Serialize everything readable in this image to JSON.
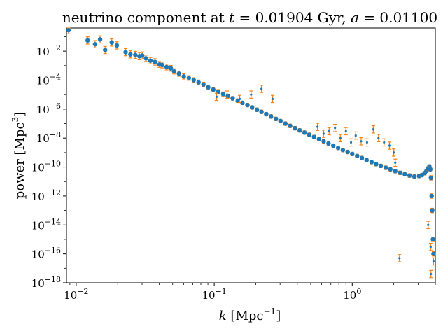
{
  "chart_data": {
    "type": "scatter",
    "title": {
      "prefix": "neutrino component at ",
      "t_symbol": "t",
      "eq1": " = 0.01904 Gyr, ",
      "a_symbol": "a",
      "eq2": " = 0.01100"
    },
    "xlabel": {
      "symbol": "k",
      "unit_open": " [Mpc",
      "unit_exp": "−1",
      "unit_close": "]"
    },
    "ylabel": {
      "text": "power [Mpc",
      "unit_exp": "3",
      "unit_close": "]"
    },
    "x_scale": "log",
    "y_scale": "log",
    "xlim": [
      0.0085,
      4.0
    ],
    "ylim": [
      1e-18,
      0.4
    ],
    "x_ticks": [
      {
        "base": "10",
        "exp": "−2",
        "value": 0.01
      },
      {
        "base": "10",
        "exp": "−1",
        "value": 0.1
      },
      {
        "base": "10",
        "exp": "0",
        "value": 1
      }
    ],
    "y_ticks": [
      {
        "base": "10",
        "exp": "−2",
        "value": 0.01
      },
      {
        "base": "10",
        "exp": "−4",
        "value": 0.0001
      },
      {
        "base": "10",
        "exp": "−6",
        "value": 1e-06
      },
      {
        "base": "10",
        "exp": "−8",
        "value": 1e-08
      },
      {
        "base": "10",
        "exp": "−10",
        "value": 1e-10
      },
      {
        "base": "10",
        "exp": "−12",
        "value": 1e-12
      },
      {
        "base": "10",
        "exp": "−14",
        "value": 1e-14
      },
      {
        "base": "10",
        "exp": "−16",
        "value": 1e-16
      },
      {
        "base": "10",
        "exp": "−18",
        "value": 1e-18
      }
    ],
    "grid": false,
    "legend": "none",
    "colors": {
      "points": "#1f77b4",
      "errorbars": "#ff7f0e"
    },
    "series": [
      {
        "x": [
          0.0088,
          0.0121,
          0.0137,
          0.0149,
          0.0162,
          0.0181,
          0.0197,
          0.0228,
          0.0247,
          0.0268,
          0.0287,
          0.0301,
          0.032,
          0.0345,
          0.0372,
          0.0401,
          0.042,
          0.0452,
          0.0485,
          0.0512,
          0.0555,
          0.0602,
          0.0655,
          0.071,
          0.077,
          0.0835,
          0.0905,
          0.0985,
          0.107,
          0.116,
          0.1255,
          0.136,
          0.148,
          0.16,
          0.174,
          0.188,
          0.204,
          0.22,
          0.238,
          0.258,
          0.28,
          0.302,
          0.328,
          0.355,
          0.385,
          0.416,
          0.451,
          0.488,
          0.529,
          0.574,
          0.621,
          0.673,
          0.729,
          0.79,
          0.855,
          0.926,
          1.0,
          1.085,
          1.175,
          1.27,
          1.38,
          1.49,
          1.61,
          1.75,
          1.89,
          2.05,
          2.22,
          2.4,
          2.6,
          2.82,
          3.05,
          3.2,
          3.35,
          3.45,
          3.55,
          3.62,
          3.68,
          3.72,
          3.76,
          3.8,
          3.84,
          3.88
        ],
        "y": [
          0.28,
          0.055,
          0.03,
          0.065,
          0.012,
          0.04,
          0.025,
          0.0085,
          0.006,
          0.0055,
          0.0045,
          0.005,
          0.0032,
          0.0022,
          0.0018,
          0.0012,
          0.0011,
          0.0008,
          0.00065,
          0.0004,
          0.00028,
          0.00018,
          0.00014,
          0.0001,
          7e-05,
          5e-05,
          3.2e-05,
          2.2e-05,
          1.6e-05,
          1.1e-05,
          8e-06,
          5.5e-06,
          3.8e-06,
          2.7e-06,
          1.9e-06,
          1.3e-06,
          9e-07,
          6.5e-07,
          4.5e-07,
          3.1e-07,
          2.1e-07,
          1.5e-07,
          1e-07,
          7e-08,
          4.8e-08,
          3.4e-08,
          2.4e-08,
          1.7e-08,
          1.2e-08,
          8.5e-09,
          6e-09,
          4.2e-09,
          3e-09,
          2.1e-09,
          1.5e-09,
          1.1e-09,
          8e-10,
          5.8e-10,
          4.2e-10,
          3e-10,
          2.2e-10,
          1.6e-10,
          1.2e-10,
          9e-11,
          7e-11,
          5.2e-11,
          4e-11,
          3.2e-11,
          2.6e-11,
          2.2e-11,
          2.4e-11,
          2.8e-11,
          3.8e-11,
          5.5e-11,
          8e-11,
          1.1e-10,
          7e-11,
          1.8e-11,
          1e-12,
          1e-13,
          1e-15,
          1e-16
        ],
        "err": [
          0.25,
          0.25,
          0.25,
          0.25,
          0.25,
          0.25,
          0.25,
          0.25,
          0.25,
          0.25,
          0.25,
          0.25,
          0.22,
          0.22,
          0.22,
          0.2,
          0.2,
          0.2,
          0.2,
          0.18,
          0.18,
          0.18,
          0.16,
          0.16,
          0.16,
          0.15,
          0.15,
          0.14,
          0.14,
          0.14,
          0.13,
          0.13,
          0.12,
          0.12,
          0.12,
          0.12,
          0.12,
          0.12,
          0.12,
          0.12,
          0.12,
          0.12,
          0.12,
          0.12,
          0.12,
          0.12,
          0.12,
          0.12,
          0.12,
          0.12,
          0.12,
          0.12,
          0.12,
          0.12,
          0.12,
          0.12,
          0.12,
          0.12,
          0.12,
          0.12,
          0.12,
          0.12,
          0.12,
          0.12,
          0.12,
          0.12,
          0.12,
          0.12,
          0.12,
          0.12,
          0.12,
          0.12,
          0.12,
          0.12,
          0.12,
          0.12,
          0.12,
          0.15,
          0.15,
          0.15,
          0.15,
          0.15
        ]
      },
      {
        "x": [
          0.104,
          0.124,
          0.153,
          0.185,
          0.22,
          0.265,
          0.56,
          0.62,
          0.68,
          0.75,
          0.82,
          0.9,
          0.98,
          1.06,
          1.16,
          1.28,
          1.42,
          1.55,
          1.7,
          1.86,
          2.0,
          2.05,
          2.2,
          3.55,
          3.7,
          3.72,
          3.88
        ],
        "y": [
          7e-06,
          1e-05,
          5e-06,
          1e-05,
          2.5e-05,
          5e-06,
          6e-08,
          2e-08,
          3e-08,
          5e-08,
          1e-08,
          3e-08,
          5e-09,
          1.5e-08,
          6e-09,
          5e-09,
          4e-08,
          1e-08,
          5e-09,
          3e-09,
          1e-09,
          2e-10,
          5e-17,
          1e-14,
          3e-16,
          4e-18,
          3e-17
        ],
        "err": [
          0.25,
          0.25,
          0.25,
          0.25,
          0.25,
          0.25,
          0.25,
          0.25,
          0.25,
          0.25,
          0.25,
          0.25,
          0.25,
          0.25,
          0.25,
          0.25,
          0.25,
          0.25,
          0.25,
          0.25,
          0.25,
          0.25,
          0.25,
          0.25,
          0.25,
          0.25,
          0.25
        ]
      }
    ]
  }
}
